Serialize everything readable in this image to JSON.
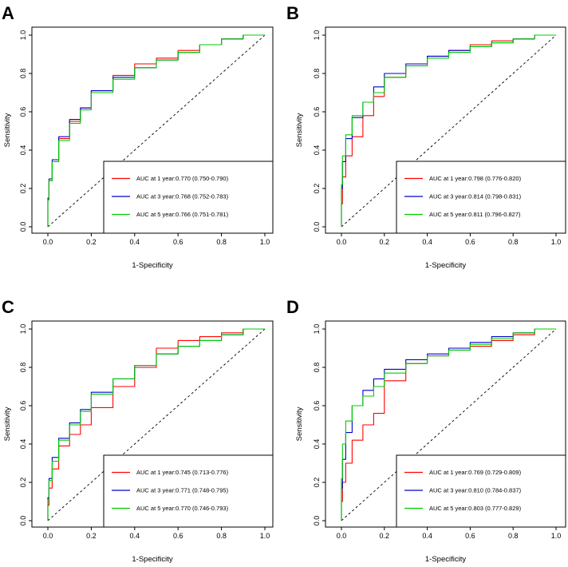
{
  "chart_data": [
    {
      "panel": "A",
      "type": "line",
      "xlabel": "1-Specificity",
      "ylabel": "Sensitivity",
      "xlim": [
        0,
        1
      ],
      "ylim": [
        0,
        1
      ],
      "xticks": [
        "0.0",
        "0.2",
        "0.4",
        "0.6",
        "0.8",
        "1.0"
      ],
      "yticks": [
        "0.0",
        "0.2",
        "0.4",
        "0.6",
        "0.8",
        "1.0"
      ],
      "legend_position": "bottom-right",
      "series": [
        {
          "name": "AUC at 1 year:0.770 (0.750-0.790)",
          "color": "#ff0000",
          "x": [
            0,
            0.005,
            0.02,
            0.05,
            0.1,
            0.15,
            0.2,
            0.3,
            0.4,
            0.5,
            0.6,
            0.7,
            0.8,
            0.9,
            1.0
          ],
          "y": [
            0,
            0.14,
            0.24,
            0.34,
            0.46,
            0.55,
            0.62,
            0.71,
            0.79,
            0.85,
            0.88,
            0.92,
            0.95,
            0.98,
            1.0
          ]
        },
        {
          "name": "AUC at 3 year:0.768 (0.752-0.783)",
          "color": "#0000cc",
          "x": [
            0,
            0.005,
            0.02,
            0.05,
            0.1,
            0.15,
            0.2,
            0.3,
            0.4,
            0.5,
            0.6,
            0.7,
            0.8,
            0.9,
            1.0
          ],
          "y": [
            0,
            0.15,
            0.25,
            0.35,
            0.47,
            0.56,
            0.62,
            0.71,
            0.78,
            0.83,
            0.87,
            0.91,
            0.95,
            0.98,
            1.0
          ]
        },
        {
          "name": "AUC at 5 year:0.766 (0.751-0.781)",
          "color": "#00cc00",
          "x": [
            0,
            0.005,
            0.02,
            0.05,
            0.1,
            0.15,
            0.2,
            0.3,
            0.4,
            0.5,
            0.6,
            0.7,
            0.8,
            0.9,
            1.0
          ],
          "y": [
            0,
            0.14,
            0.24,
            0.34,
            0.45,
            0.54,
            0.61,
            0.7,
            0.77,
            0.83,
            0.87,
            0.91,
            0.95,
            0.98,
            1.0
          ]
        }
      ]
    },
    {
      "panel": "B",
      "type": "line",
      "xlabel": "1-Specificity",
      "ylabel": "Sensitivity",
      "xlim": [
        0,
        1
      ],
      "ylim": [
        0,
        1
      ],
      "xticks": [
        "0.0",
        "0.2",
        "0.4",
        "0.6",
        "0.8",
        "1.0"
      ],
      "yticks": [
        "0.0",
        "0.2",
        "0.4",
        "0.6",
        "0.8",
        "1.0"
      ],
      "legend_position": "bottom-right",
      "series": [
        {
          "name": "AUC at 1 year:0.798 (0.776-0.820)",
          "color": "#ff0000",
          "x": [
            0,
            0.005,
            0.02,
            0.05,
            0.1,
            0.15,
            0.2,
            0.3,
            0.4,
            0.5,
            0.6,
            0.7,
            0.8,
            0.9,
            1.0
          ],
          "y": [
            0,
            0.12,
            0.26,
            0.37,
            0.47,
            0.58,
            0.68,
            0.78,
            0.84,
            0.89,
            0.92,
            0.95,
            0.97,
            0.98,
            1.0
          ]
        },
        {
          "name": "AUC at 3 year:0.814 (0.798-0.831)",
          "color": "#0000cc",
          "x": [
            0,
            0.005,
            0.02,
            0.05,
            0.1,
            0.15,
            0.2,
            0.3,
            0.4,
            0.5,
            0.6,
            0.7,
            0.8,
            0.9,
            1.0
          ],
          "y": [
            0,
            0.2,
            0.34,
            0.46,
            0.57,
            0.65,
            0.73,
            0.8,
            0.85,
            0.89,
            0.92,
            0.94,
            0.96,
            0.98,
            1.0
          ]
        },
        {
          "name": "AUC at 5 year:0.811 (0.796-0.827)",
          "color": "#00cc00",
          "x": [
            0,
            0.005,
            0.02,
            0.05,
            0.1,
            0.15,
            0.2,
            0.3,
            0.4,
            0.5,
            0.6,
            0.7,
            0.8,
            0.9,
            1.0
          ],
          "y": [
            0,
            0.22,
            0.37,
            0.48,
            0.58,
            0.65,
            0.7,
            0.78,
            0.84,
            0.88,
            0.91,
            0.94,
            0.96,
            0.98,
            1.0
          ]
        }
      ]
    },
    {
      "panel": "C",
      "type": "line",
      "xlabel": "1-Specificity",
      "ylabel": "Sensitivity",
      "xlim": [
        0,
        1
      ],
      "ylim": [
        0,
        1
      ],
      "xticks": [
        "0.0",
        "0.2",
        "0.4",
        "0.6",
        "0.8",
        "1.0"
      ],
      "yticks": [
        "0.0",
        "0.2",
        "0.4",
        "0.6",
        "0.8",
        "1.0"
      ],
      "legend_position": "bottom-right",
      "series": [
        {
          "name": "AUC at 1 year:0.745 (0.713-0.776)",
          "color": "#ff0000",
          "x": [
            0,
            0.005,
            0.02,
            0.05,
            0.1,
            0.15,
            0.2,
            0.3,
            0.4,
            0.5,
            0.6,
            0.7,
            0.8,
            0.9,
            1.0
          ],
          "y": [
            0,
            0.08,
            0.17,
            0.27,
            0.39,
            0.45,
            0.5,
            0.59,
            0.7,
            0.8,
            0.9,
            0.94,
            0.96,
            0.98,
            1.0
          ]
        },
        {
          "name": "AUC at 3 year:0.771 (0.748-0.795)",
          "color": "#0000cc",
          "x": [
            0,
            0.005,
            0.02,
            0.05,
            0.1,
            0.15,
            0.2,
            0.3,
            0.4,
            0.5,
            0.6,
            0.7,
            0.8,
            0.9,
            1.0
          ],
          "y": [
            0,
            0.12,
            0.22,
            0.33,
            0.43,
            0.51,
            0.58,
            0.67,
            0.74,
            0.81,
            0.87,
            0.91,
            0.94,
            0.97,
            1.0
          ]
        },
        {
          "name": "AUC at 5 year:0.770 (0.746-0.793)",
          "color": "#00cc00",
          "x": [
            0,
            0.005,
            0.02,
            0.05,
            0.1,
            0.15,
            0.2,
            0.3,
            0.4,
            0.5,
            0.6,
            0.7,
            0.8,
            0.9,
            1.0
          ],
          "y": [
            0,
            0.11,
            0.21,
            0.31,
            0.42,
            0.5,
            0.57,
            0.66,
            0.74,
            0.81,
            0.87,
            0.91,
            0.94,
            0.97,
            1.0
          ]
        }
      ]
    },
    {
      "panel": "D",
      "type": "line",
      "xlabel": "1-Specificity",
      "ylabel": "Sensitivity",
      "xlim": [
        0,
        1
      ],
      "ylim": [
        0,
        1
      ],
      "xticks": [
        "0.0",
        "0.2",
        "0.4",
        "0.6",
        "0.8",
        "1.0"
      ],
      "yticks": [
        "0.0",
        "0.2",
        "0.4",
        "0.6",
        "0.8",
        "1.0"
      ],
      "legend_position": "bottom-right",
      "series": [
        {
          "name": "AUC at 1 year:0.769 (0.729-0.809)",
          "color": "#ff0000",
          "x": [
            0,
            0.005,
            0.02,
            0.05,
            0.1,
            0.15,
            0.2,
            0.3,
            0.4,
            0.5,
            0.6,
            0.7,
            0.8,
            0.9,
            1.0
          ],
          "y": [
            0,
            0.1,
            0.2,
            0.3,
            0.42,
            0.5,
            0.56,
            0.73,
            0.82,
            0.86,
            0.89,
            0.91,
            0.94,
            0.97,
            1.0
          ]
        },
        {
          "name": "AUC at 3 year:0.810 (0.784-0.837)",
          "color": "#0000cc",
          "x": [
            0,
            0.005,
            0.02,
            0.05,
            0.1,
            0.15,
            0.2,
            0.3,
            0.4,
            0.5,
            0.6,
            0.7,
            0.8,
            0.9,
            1.0
          ],
          "y": [
            0,
            0.17,
            0.32,
            0.46,
            0.6,
            0.68,
            0.74,
            0.79,
            0.84,
            0.87,
            0.9,
            0.93,
            0.96,
            0.98,
            1.0
          ]
        },
        {
          "name": "AUC at 5 year:0.803 (0.777-0.829)",
          "color": "#00cc00",
          "x": [
            0,
            0.005,
            0.02,
            0.05,
            0.1,
            0.15,
            0.2,
            0.3,
            0.4,
            0.5,
            0.6,
            0.7,
            0.8,
            0.9,
            1.0
          ],
          "y": [
            0,
            0.22,
            0.4,
            0.52,
            0.6,
            0.65,
            0.7,
            0.77,
            0.82,
            0.86,
            0.89,
            0.92,
            0.95,
            0.98,
            1.0
          ]
        }
      ]
    }
  ]
}
